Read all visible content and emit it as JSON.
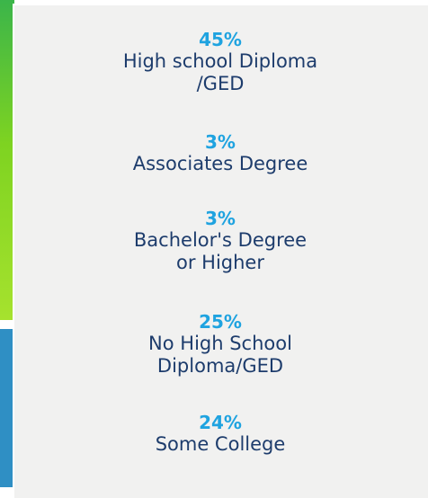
{
  "items": [
    {
      "percent": "45%",
      "lines": [
        "High school Diploma",
        "/GED"
      ]
    },
    {
      "percent": "3%",
      "lines": [
        "Associates Degree"
      ]
    },
    {
      "percent": "3%",
      "lines": [
        "Bachelor's Degree",
        "or Higher"
      ]
    },
    {
      "percent": "25%",
      "lines": [
        "No High School",
        "Diploma/GED"
      ]
    },
    {
      "percent": "24%",
      "lines": [
        "Some College"
      ]
    }
  ]
}
